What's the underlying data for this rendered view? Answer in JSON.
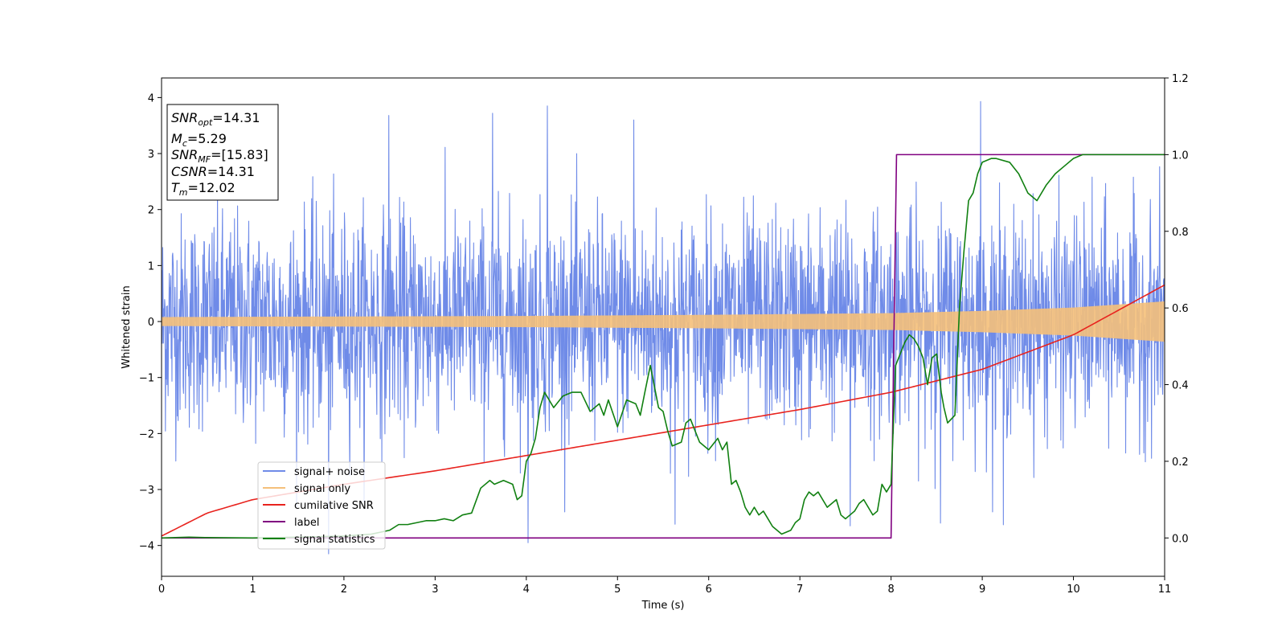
{
  "chart_data": {
    "type": "line",
    "title": "",
    "xlabel": "Time (s)",
    "ylabel": "Whitened strain",
    "y2label": "",
    "xlim": [
      0,
      11
    ],
    "ylim": [
      -4.55,
      4.35
    ],
    "y2lim": [
      -0.1,
      1.2
    ],
    "xticks": [
      0,
      1,
      2,
      3,
      4,
      5,
      6,
      7,
      8,
      9,
      10,
      11
    ],
    "yticks": [
      -4,
      -3,
      -2,
      -1,
      0,
      1,
      2,
      3,
      4
    ],
    "y2ticks": [
      0.0,
      0.2,
      0.4,
      0.6,
      0.8,
      1.0,
      1.2
    ],
    "y2tick_labels": [
      "0.0",
      "0.2",
      "0.4",
      "0.6",
      "0.8",
      "1.0",
      "1.2"
    ],
    "grid": false,
    "legend_position": "lower-left",
    "annotation": {
      "lines": [
        {
          "base": "SNR",
          "sub": "opt",
          "value": "=14.31"
        },
        {
          "base": "M",
          "sub": "c",
          "value": "=5.29"
        },
        {
          "base": "SNR",
          "sub": "MF",
          "value": "=[15.83]"
        },
        {
          "base": "CSNR",
          "sub": "",
          "value": "=14.31"
        },
        {
          "base": "T",
          "sub": "m",
          "value": "=12.02"
        }
      ]
    },
    "series": [
      {
        "name": "signal+ noise",
        "color": "#6f8be8",
        "axis": "left",
        "style": "noise",
        "noise_std": 0.95,
        "noise_peaks": [
          [
            2.49,
            3.68
          ],
          [
            3.63,
            3.72
          ],
          [
            4.23,
            3.85
          ],
          [
            5.18,
            3.6
          ],
          [
            8.98,
            3.93
          ],
          [
            1.83,
            -4.15
          ],
          [
            4.02,
            -3.95
          ],
          [
            5.63,
            -3.62
          ],
          [
            7.55,
            -3.65
          ],
          [
            8.54,
            -3.6
          ],
          [
            9.23,
            -3.63
          ]
        ]
      },
      {
        "name": "signal only",
        "color": "#f5c07a",
        "axis": "left",
        "style": "chirp",
        "envelope_x": [
          0,
          2,
          4,
          6,
          8,
          9,
          10,
          11
        ],
        "envelope_y": [
          0.07,
          0.08,
          0.09,
          0.11,
          0.14,
          0.18,
          0.24,
          0.35
        ]
      },
      {
        "name": "cumilative SNR",
        "color": "#e8231e",
        "axis": "right",
        "style": "line",
        "x": [
          0,
          0.5,
          1,
          2,
          3,
          4,
          5,
          6,
          7,
          8,
          9,
          10,
          11
        ],
        "y": [
          0.005,
          0.065,
          0.1,
          0.14,
          0.175,
          0.215,
          0.255,
          0.295,
          0.335,
          0.38,
          0.44,
          0.53,
          0.66
        ]
      },
      {
        "name": "label",
        "color": "#800080",
        "axis": "right",
        "style": "line",
        "x": [
          0,
          8.0,
          8.06,
          11
        ],
        "y": [
          0,
          0,
          1,
          1
        ]
      },
      {
        "name": "signal statistics",
        "color": "#118011",
        "axis": "right",
        "style": "line",
        "x": [
          0,
          0.3,
          0.5,
          1.0,
          1.5,
          2.0,
          2.3,
          2.5,
          2.6,
          2.7,
          2.8,
          2.9,
          3.0,
          3.1,
          3.2,
          3.3,
          3.4,
          3.5,
          3.6,
          3.65,
          3.75,
          3.85,
          3.9,
          3.95,
          4.0,
          4.05,
          4.1,
          4.15,
          4.2,
          4.3,
          4.4,
          4.5,
          4.6,
          4.7,
          4.75,
          4.8,
          4.85,
          4.9,
          5.0,
          5.1,
          5.2,
          5.25,
          5.3,
          5.36,
          5.45,
          5.5,
          5.55,
          5.6,
          5.7,
          5.75,
          5.8,
          5.85,
          5.9,
          6.0,
          6.1,
          6.15,
          6.2,
          6.25,
          6.3,
          6.35,
          6.4,
          6.45,
          6.5,
          6.55,
          6.6,
          6.65,
          6.7,
          6.8,
          6.9,
          6.95,
          7.0,
          7.05,
          7.1,
          7.15,
          7.2,
          7.3,
          7.4,
          7.45,
          7.5,
          7.55,
          7.6,
          7.65,
          7.7,
          7.8,
          7.85,
          7.9,
          7.95,
          8.0,
          8.05,
          8.1,
          8.15,
          8.2,
          8.25,
          8.3,
          8.35,
          8.4,
          8.45,
          8.5,
          8.55,
          8.58,
          8.62,
          8.7,
          8.75,
          8.8,
          8.85,
          8.9,
          8.95,
          9.0,
          9.1,
          9.15,
          9.3,
          9.4,
          9.5,
          9.6,
          9.7,
          9.8,
          9.9,
          10.0,
          10.1,
          10.3,
          10.5,
          11.0
        ],
        "y": [
          0.0,
          0.002,
          0.001,
          0.0,
          0.002,
          0.005,
          0.01,
          0.02,
          0.035,
          0.035,
          0.04,
          0.045,
          0.045,
          0.05,
          0.045,
          0.06,
          0.065,
          0.13,
          0.15,
          0.14,
          0.15,
          0.14,
          0.1,
          0.11,
          0.2,
          0.22,
          0.26,
          0.34,
          0.38,
          0.34,
          0.37,
          0.38,
          0.38,
          0.33,
          0.34,
          0.35,
          0.32,
          0.36,
          0.29,
          0.36,
          0.35,
          0.32,
          0.38,
          0.45,
          0.34,
          0.33,
          0.28,
          0.24,
          0.25,
          0.3,
          0.31,
          0.28,
          0.25,
          0.23,
          0.26,
          0.23,
          0.25,
          0.14,
          0.15,
          0.12,
          0.08,
          0.06,
          0.08,
          0.06,
          0.07,
          0.05,
          0.03,
          0.01,
          0.02,
          0.04,
          0.05,
          0.1,
          0.12,
          0.11,
          0.12,
          0.08,
          0.1,
          0.06,
          0.05,
          0.06,
          0.07,
          0.09,
          0.1,
          0.06,
          0.07,
          0.14,
          0.12,
          0.14,
          0.45,
          0.48,
          0.51,
          0.53,
          0.52,
          0.5,
          0.47,
          0.4,
          0.47,
          0.48,
          0.38,
          0.34,
          0.3,
          0.32,
          0.6,
          0.75,
          0.88,
          0.9,
          0.95,
          0.98,
          0.99,
          0.99,
          0.98,
          0.95,
          0.9,
          0.88,
          0.92,
          0.95,
          0.97,
          0.99,
          1.0,
          1.0,
          1.0,
          1.0
        ]
      }
    ]
  }
}
